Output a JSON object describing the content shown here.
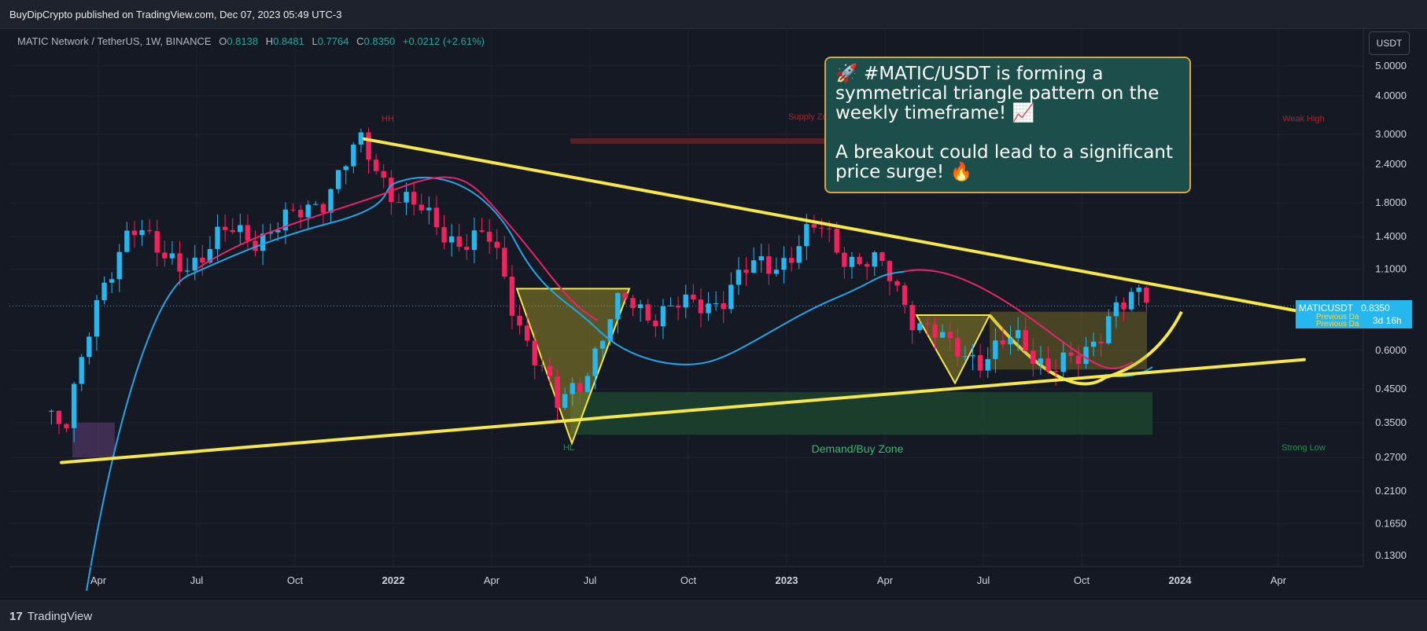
{
  "header": {
    "published": "BuyDipCrypto published on TradingView.com, Dec 07, 2023 05:49 UTC-3"
  },
  "legend": {
    "symbol": "MATIC Network / TetherUS, 1W, BINANCE",
    "o_label": "O",
    "o_value": "0.8138",
    "h_label": "H",
    "h_value": "0.8481",
    "l_label": "L",
    "l_value": "0.7764",
    "c_label": "C",
    "c_value": "0.8350",
    "change": "+0.0212 (+2.61%)"
  },
  "unit_button": "USDT",
  "callout": {
    "line1": "🚀 #MATIC/USDT is forming a symmetrical triangle pattern on the weekly timeframe! 📈",
    "line2": "A breakout could lead to a significant price surge! 🔥"
  },
  "price_tag": {
    "symbol": "MATICUSDT",
    "price": "0.8350",
    "countdown": "3d 16h",
    "prev_label": "Previous Da"
  },
  "footer": {
    "brand": "TradingView",
    "logo": "17"
  },
  "colors": {
    "up": "#26b7ef",
    "down": "#f2225f",
    "trendline": "#f7e84a",
    "ma_fast": "#e8246b",
    "ma_slow": "#1fa7e8",
    "demand_zone": "#1c4a2f",
    "supply_zone": "#5a2227"
  },
  "chart_data": {
    "type": "candlestick",
    "timeframe": "1W",
    "y_scale": "log",
    "y_ticks": [
      "5.0000",
      "4.0000",
      "3.0000",
      "2.4000",
      "1.8000",
      "1.4000",
      "1.1000",
      "0.8350",
      "0.6000",
      "0.4500",
      "0.3500",
      "0.2700",
      "0.2100",
      "0.1650",
      "0.1300"
    ],
    "x_ticks": [
      "Apr",
      "Jul",
      "Oct",
      "2022",
      "Apr",
      "Jul",
      "Oct",
      "2023",
      "Apr",
      "Jul",
      "Oct",
      "2024",
      "Apr"
    ],
    "annotations": {
      "hh": "HH",
      "hl": "HL",
      "supply": "Supply Zone",
      "demand": "Demand/Buy Zone",
      "weak_high": "Weak High",
      "strong_low": "Strong Low"
    },
    "last_price": 0.835,
    "trendlines": [
      {
        "name": "upper-resistance",
        "from": [
          "2021-11",
          2.9
        ],
        "to": [
          "2024-04",
          0.8
        ]
      },
      {
        "name": "lower-support",
        "from": [
          "2021-02",
          0.26
        ],
        "to": [
          "2024-04",
          0.56
        ]
      }
    ],
    "ohlc_sample": [
      {
        "t": "2021-03",
        "c": 0.38
      },
      {
        "t": "2021-05",
        "c": 1.7
      },
      {
        "t": "2021-06",
        "c": 1.1
      },
      {
        "t": "2021-08",
        "c": 1.4
      },
      {
        "t": "2021-10",
        "c": 1.55
      },
      {
        "t": "2021-12",
        "c": 2.7
      },
      {
        "t": "2022-02",
        "c": 1.55
      },
      {
        "t": "2022-04",
        "c": 1.3
      },
      {
        "t": "2022-06",
        "c": 0.38
      },
      {
        "t": "2022-08",
        "c": 0.85
      },
      {
        "t": "2022-10",
        "c": 0.8
      },
      {
        "t": "2023-02",
        "c": 1.45
      },
      {
        "t": "2023-04",
        "c": 1.05
      },
      {
        "t": "2023-06",
        "c": 0.58
      },
      {
        "t": "2023-08",
        "c": 0.62
      },
      {
        "t": "2023-10",
        "c": 0.52
      },
      {
        "t": "2023-11",
        "c": 0.9
      },
      {
        "t": "2023-12",
        "c": 0.835
      }
    ]
  }
}
